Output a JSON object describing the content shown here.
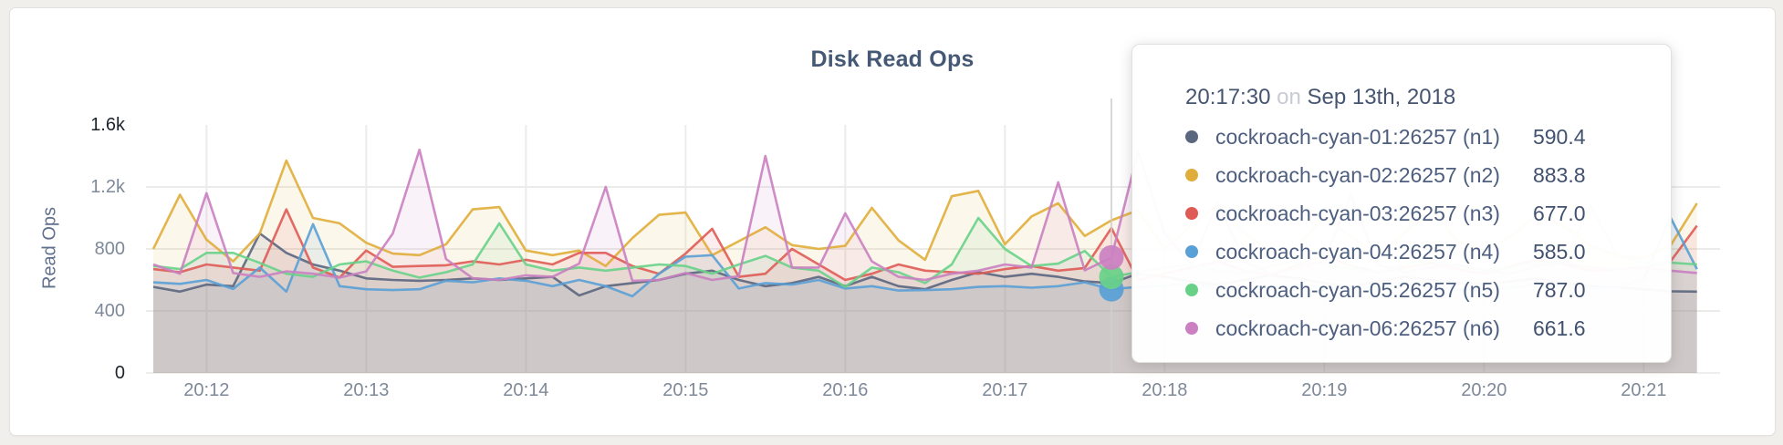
{
  "page": {
    "background": "#f1efec"
  },
  "chart_data": {
    "type": "line",
    "title": "Disk Read Ops",
    "ylabel": "Read Ops",
    "xlabel": "",
    "grid": true,
    "ylim": [
      0,
      1600
    ],
    "y_ticks": [
      {
        "value": 0,
        "label": "0"
      },
      {
        "value": 400,
        "label": "400"
      },
      {
        "value": 800,
        "label": "800"
      },
      {
        "value": 1200,
        "label": "1.2k"
      },
      {
        "value": 1600,
        "label": "1.6k"
      }
    ],
    "x_ticks": [
      "20:12",
      "20:13",
      "20:14",
      "20:15",
      "20:16",
      "20:17",
      "20:18",
      "20:19",
      "20:20",
      "20:21"
    ],
    "x_start": "20:11:40",
    "x_end": "20:21:20",
    "x_step_seconds": 10,
    "series": [
      {
        "name": "cockroach-cyan-01:26257 (n1)",
        "color": "#5b667f",
        "values": [
          555,
          525,
          570,
          560,
          900,
          775,
          700,
          660,
          610,
          600,
          595,
          600,
          610,
          600,
          610,
          620,
          500,
          560,
          580,
          600,
          640,
          660,
          600,
          560,
          580,
          620,
          560,
          620,
          560,
          540,
          600,
          650,
          620,
          640,
          620,
          590.4,
          580,
          640,
          620,
          590,
          570,
          600,
          630,
          610,
          580,
          560,
          590,
          620,
          600,
          580,
          570,
          590,
          610,
          580,
          560,
          550,
          540,
          527,
          525
        ]
      },
      {
        "name": "cockroach-cyan-02:26257 (n2)",
        "color": "#e0ad3a",
        "values": [
          800,
          1150,
          860,
          720,
          900,
          1370,
          1000,
          965,
          840,
          770,
          760,
          830,
          1055,
          1070,
          790,
          760,
          790,
          690,
          870,
          1020,
          1035,
          760,
          850,
          940,
          825,
          800,
          820,
          1065,
          855,
          730,
          1140,
          1175,
          830,
          1010,
          1095,
          883.8,
          985,
          1050,
          800,
          950,
          1080,
          900,
          780,
          820,
          1010,
          880,
          760,
          900,
          1060,
          850,
          790,
          880,
          1020,
          950,
          820,
          760,
          740,
          820,
          1095
        ]
      },
      {
        "name": "cockroach-cyan-03:26257 (n3)",
        "color": "#df5b55",
        "values": [
          670,
          650,
          700,
          680,
          660,
          1055,
          680,
          615,
          790,
          685,
          690,
          695,
          720,
          700,
          730,
          700,
          775,
          775,
          690,
          640,
          770,
          930,
          620,
          640,
          800,
          700,
          600,
          640,
          700,
          660,
          650,
          640,
          670,
          690,
          660,
          677,
          935,
          600,
          640,
          680,
          720,
          660,
          630,
          700,
          760,
          690,
          650,
          680,
          710,
          670,
          640,
          690,
          730,
          700,
          660,
          670,
          680,
          718,
          950
        ]
      },
      {
        "name": "cockroach-cyan-04:26257 (n4)",
        "color": "#59a0d6",
        "values": [
          585,
          575,
          600,
          542,
          680,
          525,
          960,
          560,
          540,
          535,
          540,
          595,
          585,
          610,
          595,
          560,
          600,
          560,
          495,
          640,
          750,
          760,
          545,
          580,
          570,
          600,
          545,
          560,
          532,
          535,
          540,
          555,
          560,
          550,
          560,
          585,
          540,
          555,
          560,
          580,
          545,
          530,
          555,
          570,
          550,
          540,
          560,
          580,
          555,
          540,
          530,
          550,
          570,
          560,
          545,
          555,
          600,
          1005,
          670
        ]
      },
      {
        "name": "cockroach-cyan-05:26257 (n5)",
        "color": "#68d188",
        "values": [
          690,
          670,
          775,
          775,
          710,
          640,
          620,
          700,
          720,
          660,
          615,
          650,
          700,
          965,
          700,
          660,
          680,
          660,
          680,
          700,
          690,
          640,
          700,
          755,
          680,
          660,
          555,
          680,
          650,
          580,
          700,
          1000,
          800,
          690,
          705,
          787,
          620,
          650,
          680,
          700,
          660,
          640,
          690,
          720,
          700,
          670,
          650,
          700,
          730,
          690,
          660,
          680,
          710,
          720,
          1080,
          760,
          710,
          712,
          700
        ]
      },
      {
        "name": "cockroach-cyan-06:26257 (n6)",
        "color": "#ca80c1",
        "values": [
          700,
          640,
          1160,
          645,
          620,
          655,
          640,
          615,
          655,
          900,
          1440,
          735,
          612,
          600,
          630,
          620,
          705,
          1200,
          595,
          600,
          645,
          600,
          625,
          1400,
          680,
          680,
          1030,
          720,
          620,
          600,
          640,
          660,
          700,
          680,
          1230,
          661.6,
          745,
          1430,
          900,
          700,
          1100,
          720,
          640,
          680,
          720,
          1150,
          700,
          650,
          680,
          700,
          660,
          640,
          690,
          710,
          680,
          670,
          680,
          660,
          645
        ]
      }
    ]
  },
  "hover": {
    "x_time": "20:17:40",
    "guideline_color": "#cfcfcf",
    "dot_series": [
      "cockroach-cyan-04:26257 (n4)",
      "cockroach-cyan-05:26257 (n5)",
      "cockroach-cyan-06:26257 (n6)"
    ]
  },
  "tooltip": {
    "time": "20:17:30",
    "connector": "on",
    "date": "Sep 13th, 2018",
    "rows": [
      {
        "name": "cockroach-cyan-01:26257 (n1)",
        "value": "590.4",
        "color": "#5b667f"
      },
      {
        "name": "cockroach-cyan-02:26257 (n2)",
        "value": "883.8",
        "color": "#e0ad3a"
      },
      {
        "name": "cockroach-cyan-03:26257 (n3)",
        "value": "677.0",
        "color": "#df5b55"
      },
      {
        "name": "cockroach-cyan-04:26257 (n4)",
        "value": "585.0",
        "color": "#59a0d6"
      },
      {
        "name": "cockroach-cyan-05:26257 (n5)",
        "value": "787.0",
        "color": "#68d188"
      },
      {
        "name": "cockroach-cyan-06:26257 (n6)",
        "value": "661.6",
        "color": "#ca80c1"
      }
    ]
  }
}
